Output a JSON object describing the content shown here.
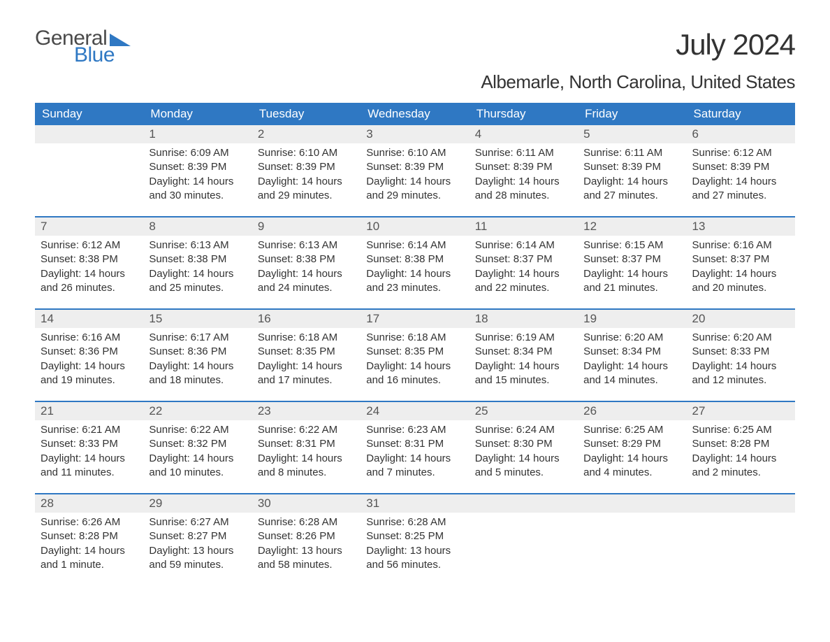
{
  "logo": {
    "word1": "General",
    "word2": "Blue"
  },
  "title": "July 2024",
  "subtitle": "Albemarle, North Carolina, United States",
  "colors": {
    "header_bg": "#2f78c3",
    "header_text": "#ffffff",
    "daynum_bg": "#eeeeee",
    "daynum_text": "#555555",
    "body_text": "#333333",
    "page_bg": "#ffffff",
    "logo_gray": "#4a4a4a",
    "logo_blue": "#2f78c3"
  },
  "typography": {
    "title_fontsize": 42,
    "subtitle_fontsize": 26,
    "dayheader_fontsize": 17,
    "daynum_fontsize": 17,
    "body_fontsize": 15,
    "font_family": "Arial"
  },
  "day_names": [
    "Sunday",
    "Monday",
    "Tuesday",
    "Wednesday",
    "Thursday",
    "Friday",
    "Saturday"
  ],
  "weeks": [
    [
      {
        "n": "",
        "sunrise": "",
        "sunset": "",
        "daylight": ""
      },
      {
        "n": "1",
        "sunrise": "Sunrise: 6:09 AM",
        "sunset": "Sunset: 8:39 PM",
        "daylight": "Daylight: 14 hours and 30 minutes."
      },
      {
        "n": "2",
        "sunrise": "Sunrise: 6:10 AM",
        "sunset": "Sunset: 8:39 PM",
        "daylight": "Daylight: 14 hours and 29 minutes."
      },
      {
        "n": "3",
        "sunrise": "Sunrise: 6:10 AM",
        "sunset": "Sunset: 8:39 PM",
        "daylight": "Daylight: 14 hours and 29 minutes."
      },
      {
        "n": "4",
        "sunrise": "Sunrise: 6:11 AM",
        "sunset": "Sunset: 8:39 PM",
        "daylight": "Daylight: 14 hours and 28 minutes."
      },
      {
        "n": "5",
        "sunrise": "Sunrise: 6:11 AM",
        "sunset": "Sunset: 8:39 PM",
        "daylight": "Daylight: 14 hours and 27 minutes."
      },
      {
        "n": "6",
        "sunrise": "Sunrise: 6:12 AM",
        "sunset": "Sunset: 8:39 PM",
        "daylight": "Daylight: 14 hours and 27 minutes."
      }
    ],
    [
      {
        "n": "7",
        "sunrise": "Sunrise: 6:12 AM",
        "sunset": "Sunset: 8:38 PM",
        "daylight": "Daylight: 14 hours and 26 minutes."
      },
      {
        "n": "8",
        "sunrise": "Sunrise: 6:13 AM",
        "sunset": "Sunset: 8:38 PM",
        "daylight": "Daylight: 14 hours and 25 minutes."
      },
      {
        "n": "9",
        "sunrise": "Sunrise: 6:13 AM",
        "sunset": "Sunset: 8:38 PM",
        "daylight": "Daylight: 14 hours and 24 minutes."
      },
      {
        "n": "10",
        "sunrise": "Sunrise: 6:14 AM",
        "sunset": "Sunset: 8:38 PM",
        "daylight": "Daylight: 14 hours and 23 minutes."
      },
      {
        "n": "11",
        "sunrise": "Sunrise: 6:14 AM",
        "sunset": "Sunset: 8:37 PM",
        "daylight": "Daylight: 14 hours and 22 minutes."
      },
      {
        "n": "12",
        "sunrise": "Sunrise: 6:15 AM",
        "sunset": "Sunset: 8:37 PM",
        "daylight": "Daylight: 14 hours and 21 minutes."
      },
      {
        "n": "13",
        "sunrise": "Sunrise: 6:16 AM",
        "sunset": "Sunset: 8:37 PM",
        "daylight": "Daylight: 14 hours and 20 minutes."
      }
    ],
    [
      {
        "n": "14",
        "sunrise": "Sunrise: 6:16 AM",
        "sunset": "Sunset: 8:36 PM",
        "daylight": "Daylight: 14 hours and 19 minutes."
      },
      {
        "n": "15",
        "sunrise": "Sunrise: 6:17 AM",
        "sunset": "Sunset: 8:36 PM",
        "daylight": "Daylight: 14 hours and 18 minutes."
      },
      {
        "n": "16",
        "sunrise": "Sunrise: 6:18 AM",
        "sunset": "Sunset: 8:35 PM",
        "daylight": "Daylight: 14 hours and 17 minutes."
      },
      {
        "n": "17",
        "sunrise": "Sunrise: 6:18 AM",
        "sunset": "Sunset: 8:35 PM",
        "daylight": "Daylight: 14 hours and 16 minutes."
      },
      {
        "n": "18",
        "sunrise": "Sunrise: 6:19 AM",
        "sunset": "Sunset: 8:34 PM",
        "daylight": "Daylight: 14 hours and 15 minutes."
      },
      {
        "n": "19",
        "sunrise": "Sunrise: 6:20 AM",
        "sunset": "Sunset: 8:34 PM",
        "daylight": "Daylight: 14 hours and 14 minutes."
      },
      {
        "n": "20",
        "sunrise": "Sunrise: 6:20 AM",
        "sunset": "Sunset: 8:33 PM",
        "daylight": "Daylight: 14 hours and 12 minutes."
      }
    ],
    [
      {
        "n": "21",
        "sunrise": "Sunrise: 6:21 AM",
        "sunset": "Sunset: 8:33 PM",
        "daylight": "Daylight: 14 hours and 11 minutes."
      },
      {
        "n": "22",
        "sunrise": "Sunrise: 6:22 AM",
        "sunset": "Sunset: 8:32 PM",
        "daylight": "Daylight: 14 hours and 10 minutes."
      },
      {
        "n": "23",
        "sunrise": "Sunrise: 6:22 AM",
        "sunset": "Sunset: 8:31 PM",
        "daylight": "Daylight: 14 hours and 8 minutes."
      },
      {
        "n": "24",
        "sunrise": "Sunrise: 6:23 AM",
        "sunset": "Sunset: 8:31 PM",
        "daylight": "Daylight: 14 hours and 7 minutes."
      },
      {
        "n": "25",
        "sunrise": "Sunrise: 6:24 AM",
        "sunset": "Sunset: 8:30 PM",
        "daylight": "Daylight: 14 hours and 5 minutes."
      },
      {
        "n": "26",
        "sunrise": "Sunrise: 6:25 AM",
        "sunset": "Sunset: 8:29 PM",
        "daylight": "Daylight: 14 hours and 4 minutes."
      },
      {
        "n": "27",
        "sunrise": "Sunrise: 6:25 AM",
        "sunset": "Sunset: 8:28 PM",
        "daylight": "Daylight: 14 hours and 2 minutes."
      }
    ],
    [
      {
        "n": "28",
        "sunrise": "Sunrise: 6:26 AM",
        "sunset": "Sunset: 8:28 PM",
        "daylight": "Daylight: 14 hours and 1 minute."
      },
      {
        "n": "29",
        "sunrise": "Sunrise: 6:27 AM",
        "sunset": "Sunset: 8:27 PM",
        "daylight": "Daylight: 13 hours and 59 minutes."
      },
      {
        "n": "30",
        "sunrise": "Sunrise: 6:28 AM",
        "sunset": "Sunset: 8:26 PM",
        "daylight": "Daylight: 13 hours and 58 minutes."
      },
      {
        "n": "31",
        "sunrise": "Sunrise: 6:28 AM",
        "sunset": "Sunset: 8:25 PM",
        "daylight": "Daylight: 13 hours and 56 minutes."
      },
      {
        "n": "",
        "sunrise": "",
        "sunset": "",
        "daylight": ""
      },
      {
        "n": "",
        "sunrise": "",
        "sunset": "",
        "daylight": ""
      },
      {
        "n": "",
        "sunrise": "",
        "sunset": "",
        "daylight": ""
      }
    ]
  ]
}
